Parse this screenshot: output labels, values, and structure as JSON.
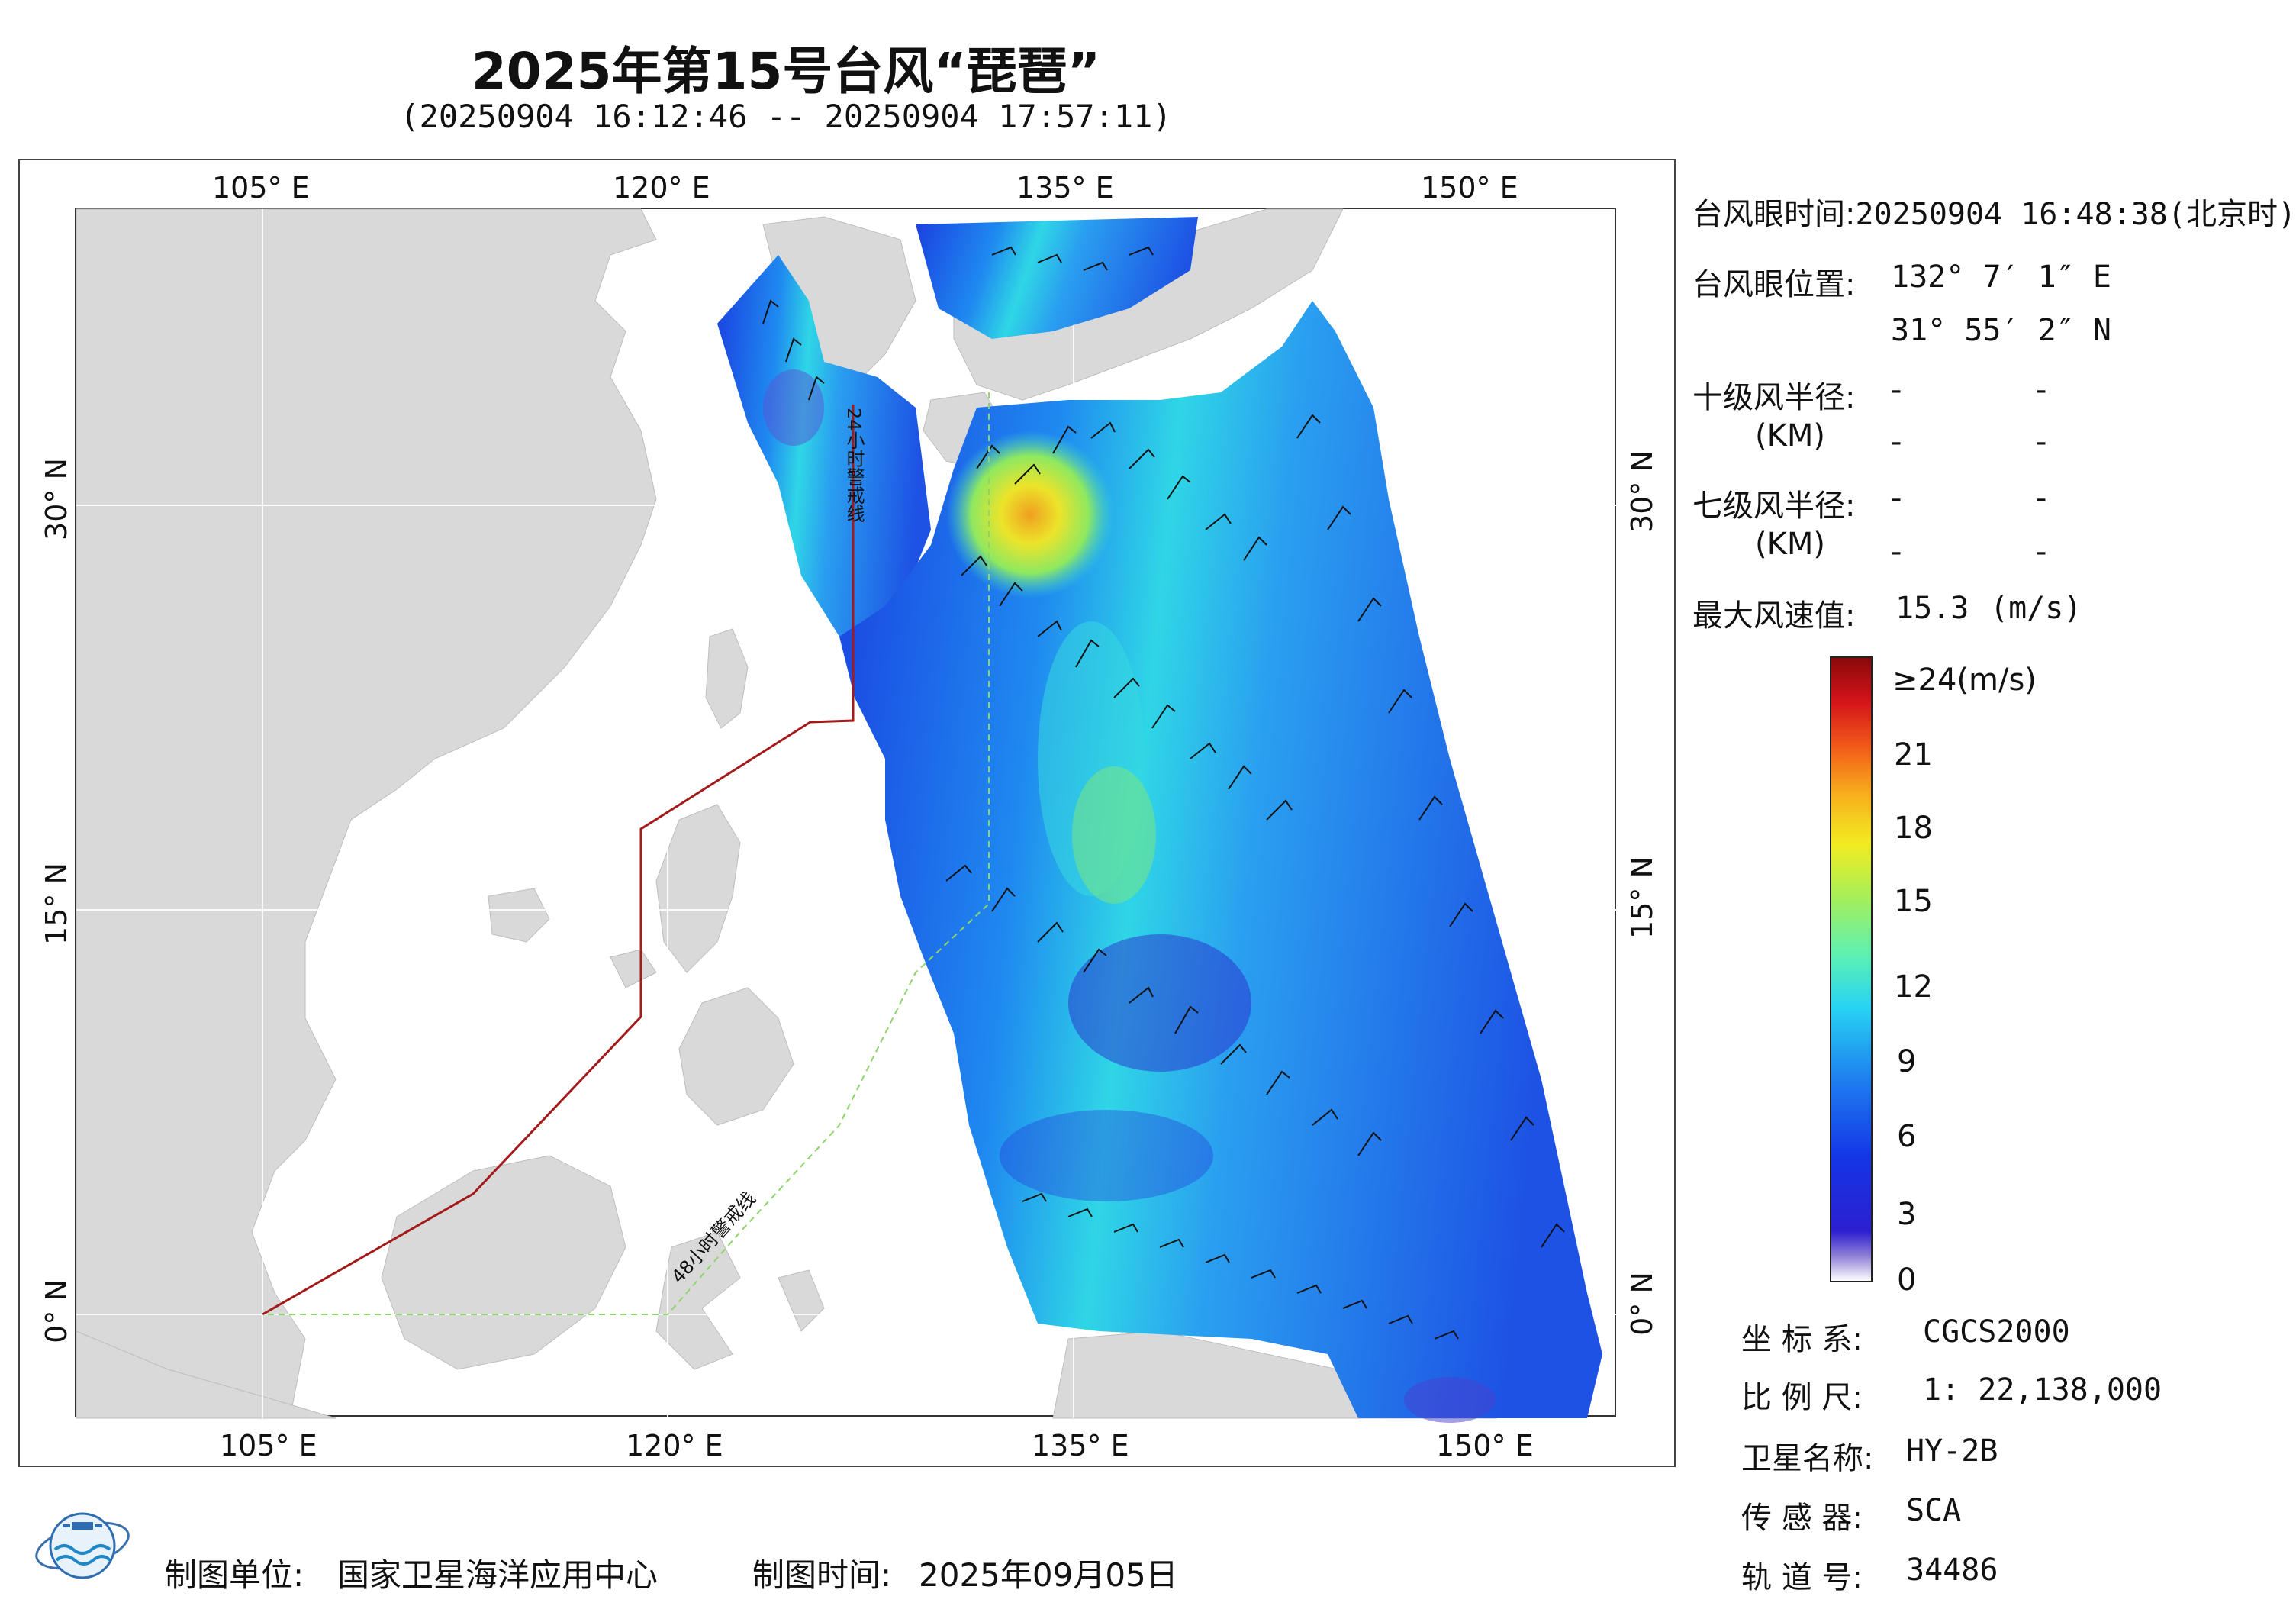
{
  "header": {
    "title": "2025年第15号台风“琵琶”",
    "subtitle": "(20250904 16:12:46 -- 20250904 17:57:11)"
  },
  "map": {
    "lon_labels": [
      "105° E",
      "120° E",
      "135° E",
      "150° E"
    ],
    "lat_labels": [
      "30° N",
      "15° N",
      "0° N"
    ],
    "line_24h": "24小时警戒线",
    "line_48h": "48小时警戒线",
    "land_color": "#d9d9d9",
    "warning_24h_color": "#a31a1a",
    "warning_48h_color": "#8fd46a",
    "max_wind_ms": 15.3
  },
  "info": {
    "eye_time_label": "台风眼时间:",
    "eye_time_value": "20250904 16:48:38(北京时)",
    "eye_pos_label": "台风眼位置:",
    "eye_lon": "132° 7′ 1″ E",
    "eye_lat": "31° 55′ 2″ N",
    "r10_label": "十级风半径:",
    "r7_label": "七级风半径:",
    "km_label": "(KM)",
    "dash": "-",
    "max_wind_label": "最大风速值:",
    "max_wind_value": "15.3",
    "max_wind_unit": "(m/s)"
  },
  "colorbar": {
    "top_label": "≥24(m/s)",
    "ticks": [
      "21",
      "18",
      "15",
      "12",
      "9",
      "6",
      "3",
      "0"
    ]
  },
  "meta": {
    "crs_label": "坐 标 系:",
    "crs_value": "CGCS2000",
    "scale_label": "比 例 尺:",
    "scale_value": "1: 22,138,000",
    "sat_label": "卫星名称:",
    "sat_value": "HY-2B",
    "sensor_label": "传 感 器:",
    "sensor_value": "SCA",
    "orbit_label": "轨 道 号:",
    "orbit_value": "34486"
  },
  "footer": {
    "org_label": "制图单位:",
    "org_value": "国家卫星海洋应用中心",
    "date_label": "制图时间:",
    "date_value": "2025年09月05日"
  }
}
